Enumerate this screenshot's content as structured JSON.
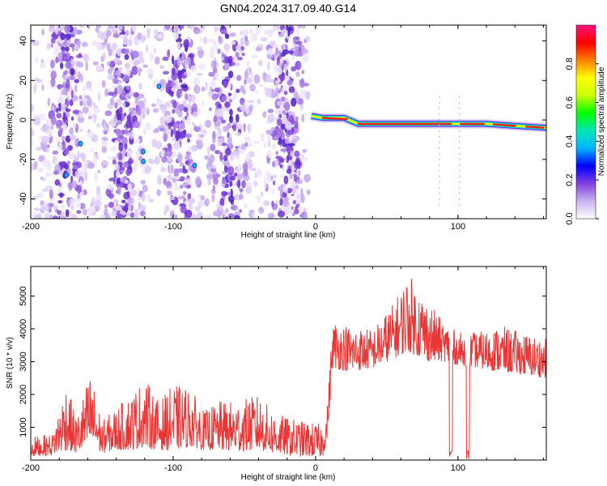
{
  "title": "GN04.2024.317.09.40.G14",
  "chart_data": [
    {
      "type": "heatmap",
      "xlabel": "Height of straight line (km)",
      "ylabel": "Frequency (Hz)",
      "xlim": [
        -200,
        162
      ],
      "ylim": [
        -50,
        48
      ],
      "xticks": [
        -200,
        -100,
        0,
        100
      ],
      "yticks": [
        -40,
        -20,
        0,
        20,
        40
      ],
      "colorbar": {
        "label": "Normalized spectral amplitude",
        "range": [
          0,
          1
        ],
        "ticks": [
          "0.0",
          "0.2",
          "0.4",
          "0.6",
          "0.8"
        ],
        "colors": [
          "#ffffff",
          "#c8b4f0",
          "#8040e0",
          "#0000ff",
          "#00b4ff",
          "#00e6b4",
          "#00ff00",
          "#c8ff00",
          "#ffff00",
          "#ff8000",
          "#ff0000",
          "#ff1080"
        ]
      },
      "noise_region": {
        "x": [
          -200,
          -5
        ],
        "columns_of_higher_density": [
          -175,
          -135,
          -95,
          -60,
          -20
        ]
      },
      "ridge": [
        {
          "x": -3,
          "f": 2
        },
        {
          "x": 5,
          "f": 1
        },
        {
          "x": 20,
          "f": 1
        },
        {
          "x": 30,
          "f": -2
        },
        {
          "x": 60,
          "f": -2
        },
        {
          "x": 80,
          "f": -2
        },
        {
          "x": 100,
          "f": -2
        },
        {
          "x": 120,
          "f": -2
        },
        {
          "x": 140,
          "f": -3
        },
        {
          "x": 162,
          "f": -4
        }
      ]
    },
    {
      "type": "line",
      "xlabel": "Height of straight line (km)",
      "ylabel": "SNR (10 * v/v)",
      "xlim": [
        -200,
        162
      ],
      "ylim": [
        0,
        5900
      ],
      "xticks": [
        -200,
        -100,
        0,
        100
      ],
      "yticks": [
        1000,
        2000,
        3000,
        4000,
        5000
      ],
      "color": "#ee3333",
      "envelope": [
        {
          "x": -200,
          "low": 100,
          "high": 700
        },
        {
          "x": -185,
          "low": 150,
          "high": 800
        },
        {
          "x": -175,
          "low": 300,
          "high": 2400
        },
        {
          "x": -168,
          "low": 200,
          "high": 1300
        },
        {
          "x": -158,
          "low": 400,
          "high": 2700
        },
        {
          "x": -150,
          "low": 200,
          "high": 1200
        },
        {
          "x": -140,
          "low": 300,
          "high": 1600
        },
        {
          "x": -130,
          "low": 300,
          "high": 2000
        },
        {
          "x": -120,
          "low": 400,
          "high": 2500
        },
        {
          "x": -110,
          "low": 300,
          "high": 1800
        },
        {
          "x": -100,
          "low": 300,
          "high": 2300
        },
        {
          "x": -88,
          "low": 400,
          "high": 2200
        },
        {
          "x": -78,
          "low": 300,
          "high": 1500
        },
        {
          "x": -68,
          "low": 300,
          "high": 1800
        },
        {
          "x": -55,
          "low": 250,
          "high": 1800
        },
        {
          "x": -40,
          "low": 300,
          "high": 2000
        },
        {
          "x": -30,
          "low": 200,
          "high": 1500
        },
        {
          "x": -20,
          "low": 150,
          "high": 1300
        },
        {
          "x": -10,
          "low": 100,
          "high": 1200
        },
        {
          "x": 5,
          "low": 100,
          "high": 1100
        },
        {
          "x": 8,
          "low": 600,
          "high": 1500
        },
        {
          "x": 12,
          "low": 2800,
          "high": 4300
        },
        {
          "x": 25,
          "low": 2700,
          "high": 4100
        },
        {
          "x": 40,
          "low": 2800,
          "high": 4000
        },
        {
          "x": 55,
          "low": 3100,
          "high": 4800
        },
        {
          "x": 65,
          "low": 3300,
          "high": 5700
        },
        {
          "x": 80,
          "low": 3000,
          "high": 4800
        },
        {
          "x": 90,
          "low": 3000,
          "high": 4200
        },
        {
          "x": 100,
          "low": 2900,
          "high": 3900
        },
        {
          "x": 115,
          "low": 2800,
          "high": 3900
        },
        {
          "x": 130,
          "low": 2700,
          "high": 4100
        },
        {
          "x": 145,
          "low": 2600,
          "high": 3900
        },
        {
          "x": 162,
          "low": 2500,
          "high": 3700
        }
      ],
      "dropouts": [
        {
          "x": 95,
          "min": 50
        },
        {
          "x": 107,
          "min": 0
        }
      ]
    }
  ]
}
